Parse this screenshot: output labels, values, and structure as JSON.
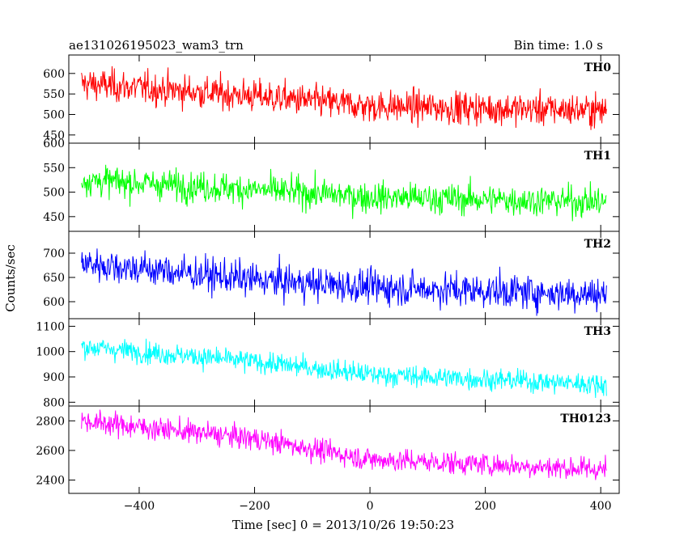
{
  "header": {
    "title": "ae131026195023_wam3_trn",
    "bin_time": "Bin time: 1.0 s"
  },
  "chart_data": {
    "type": "line",
    "title": "ae131026195023_wam3_trn",
    "subtitle": "Bin time: 1.0 s",
    "xlabel": "Time [sec] 0 = 2013/10/26 19:50:23",
    "ylabel": "Counts/sec",
    "xlim": [
      -522,
      432
    ],
    "x_range_data": [
      -500,
      410
    ],
    "bin_time_s": 1.0,
    "x_ticks": [
      -400,
      -200,
      0,
      200,
      400
    ],
    "x_tick_labels": [
      "−400",
      "−200",
      "0",
      "200",
      "400"
    ],
    "grid": false,
    "panels": [
      {
        "name": "TH0",
        "color": "#ff0000",
        "ylim": [
          430,
          645
        ],
        "y_ticks": [
          450,
          500,
          550,
          600
        ],
        "y_tick_labels": [
          "450",
          "500",
          "550",
          "600"
        ],
        "trend": [
          [
            -500,
            575
          ],
          [
            -200,
            545
          ],
          [
            0,
            520
          ],
          [
            410,
            510
          ]
        ],
        "noise_sd": 28
      },
      {
        "name": "TH1",
        "color": "#00ff00",
        "ylim": [
          420,
          600
        ],
        "y_ticks": [
          450,
          500,
          550,
          600
        ],
        "y_tick_labels": [
          "450",
          "500",
          "550",
          "600"
        ],
        "trend": [
          [
            -500,
            525
          ],
          [
            -200,
            505
          ],
          [
            0,
            490
          ],
          [
            410,
            480
          ]
        ],
        "noise_sd": 22
      },
      {
        "name": "TH2",
        "color": "#0000ff",
        "ylim": [
          565,
          745
        ],
        "y_ticks": [
          600,
          650,
          700
        ],
        "y_tick_labels": [
          "600",
          "650",
          "700"
        ],
        "trend": [
          [
            -500,
            680
          ],
          [
            -200,
            645
          ],
          [
            0,
            630
          ],
          [
            410,
            615
          ]
        ],
        "noise_sd": 25
      },
      {
        "name": "TH3",
        "color": "#00ffff",
        "ylim": [
          785,
          1130
        ],
        "y_ticks": [
          800,
          900,
          1000,
          1100
        ],
        "y_tick_labels": [
          "800",
          "900",
          "1000",
          "1100"
        ],
        "trend": [
          [
            -500,
            1020
          ],
          [
            -200,
            960
          ],
          [
            0,
            910
          ],
          [
            410,
            870
          ]
        ],
        "noise_sd": 30
      },
      {
        "name": "TH0123",
        "color": "#ff00ff",
        "ylim": [
          2310,
          2900
        ],
        "y_ticks": [
          2400,
          2600,
          2800
        ],
        "y_tick_labels": [
          "2400",
          "2600",
          "2800"
        ],
        "trend": [
          [
            -500,
            2800
          ],
          [
            -200,
            2680
          ],
          [
            0,
            2540
          ],
          [
            410,
            2470
          ]
        ],
        "noise_sd": 55
      }
    ]
  }
}
